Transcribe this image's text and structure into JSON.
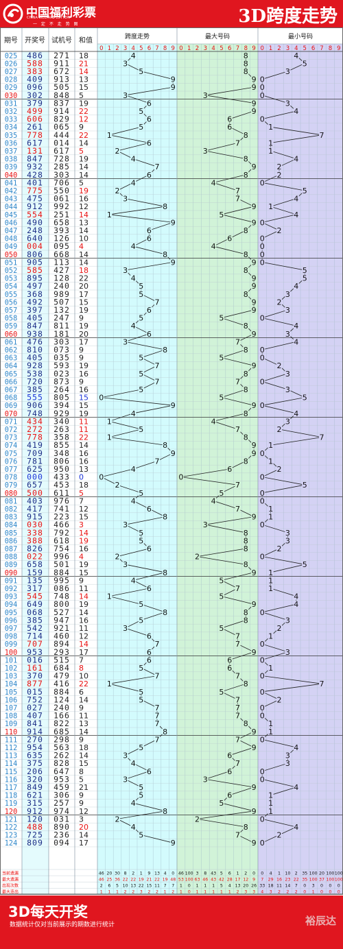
{
  "header": {
    "logo_cn": "中国福利彩票",
    "logo_en": "CHINA WELFARE LOTTERY",
    "slogan": "一 定 不 走 势 图",
    "title": "3D跨度走势"
  },
  "columns": {
    "period": "期号",
    "draw": "开奖号",
    "trial": "试机号",
    "sum": "和值",
    "span": "跨度走势",
    "max": "最大号码",
    "min": "最小号码"
  },
  "digits": [
    "0",
    "1",
    "2",
    "3",
    "4",
    "5",
    "6",
    "7",
    "8",
    "9"
  ],
  "chart_data": {
    "type": "table",
    "rows": [
      [
        "025",
        "486",
        "271",
        18
      ],
      [
        "026",
        "588",
        "911",
        21
      ],
      [
        "027",
        "383",
        "672",
        14
      ],
      [
        "028",
        "409",
        "913",
        13
      ],
      [
        "029",
        "096",
        "505",
        15
      ],
      [
        "030",
        "302",
        "848",
        5
      ],
      [
        "031",
        "379",
        "837",
        19
      ],
      [
        "032",
        "499",
        "914",
        22
      ],
      [
        "033",
        "606",
        "829",
        12
      ],
      [
        "034",
        "261",
        "065",
        9
      ],
      [
        "035",
        "778",
        "444",
        22
      ],
      [
        "036",
        "617",
        "014",
        14
      ],
      [
        "037",
        "131",
        "617",
        5
      ],
      [
        "038",
        "847",
        "728",
        19
      ],
      [
        "039",
        "932",
        "285",
        14
      ],
      [
        "040",
        "428",
        "303",
        14
      ],
      [
        "041",
        "401",
        "706",
        5
      ],
      [
        "042",
        "775",
        "550",
        19
      ],
      [
        "043",
        "475",
        "061",
        16
      ],
      [
        "044",
        "912",
        "992",
        12
      ],
      [
        "045",
        "554",
        "251",
        14
      ],
      [
        "046",
        "490",
        "658",
        13
      ],
      [
        "047",
        "248",
        "393",
        14
      ],
      [
        "048",
        "640",
        "126",
        10
      ],
      [
        "049",
        "004",
        "095",
        4
      ],
      [
        "050",
        "806",
        "668",
        14
      ],
      [
        "051",
        "905",
        "113",
        14
      ],
      [
        "052",
        "585",
        "427",
        18
      ],
      [
        "053",
        "895",
        "128",
        22
      ],
      [
        "054",
        "497",
        "240",
        20
      ],
      [
        "055",
        "368",
        "989",
        17
      ],
      [
        "056",
        "492",
        "507",
        15
      ],
      [
        "057",
        "397",
        "132",
        19
      ],
      [
        "058",
        "405",
        "247",
        9
      ],
      [
        "059",
        "847",
        "811",
        19
      ],
      [
        "060",
        "938",
        "181",
        20
      ],
      [
        "061",
        "476",
        "303",
        17
      ],
      [
        "062",
        "810",
        "073",
        9
      ],
      [
        "063",
        "405",
        "035",
        9
      ],
      [
        "064",
        "928",
        "593",
        19
      ],
      [
        "065",
        "538",
        "023",
        16
      ],
      [
        "066",
        "720",
        "873",
        9
      ],
      [
        "067",
        "385",
        "264",
        16
      ],
      [
        "068",
        "555",
        "805",
        15
      ],
      [
        "069",
        "906",
        "394",
        15
      ],
      [
        "070",
        "748",
        "929",
        19
      ],
      [
        "071",
        "434",
        "340",
        11
      ],
      [
        "072",
        "272",
        "263",
        11
      ],
      [
        "073",
        "778",
        "358",
        22
      ],
      [
        "074",
        "419",
        "855",
        14
      ],
      [
        "075",
        "709",
        "348",
        16
      ],
      [
        "076",
        "781",
        "806",
        16
      ],
      [
        "077",
        "625",
        "950",
        13
      ],
      [
        "078",
        "000",
        "433",
        0
      ],
      [
        "079",
        "657",
        "453",
        18
      ],
      [
        "080",
        "500",
        "611",
        5
      ],
      [
        "081",
        "403",
        "976",
        7
      ],
      [
        "082",
        "417",
        "741",
        12
      ],
      [
        "083",
        "915",
        "223",
        15
      ],
      [
        "084",
        "030",
        "466",
        3
      ],
      [
        "085",
        "338",
        "792",
        14
      ],
      [
        "086",
        "388",
        "618",
        19
      ],
      [
        "087",
        "826",
        "754",
        16
      ],
      [
        "088",
        "022",
        "996",
        4
      ],
      [
        "089",
        "658",
        "501",
        19
      ],
      [
        "090",
        "159",
        "884",
        15
      ],
      [
        "091",
        "135",
        "995",
        9
      ],
      [
        "092",
        "317",
        "086",
        11
      ],
      [
        "093",
        "545",
        "748",
        14
      ],
      [
        "094",
        "649",
        "800",
        19
      ],
      [
        "095",
        "068",
        "527",
        14
      ],
      [
        "096",
        "385",
        "947",
        16
      ],
      [
        "097",
        "542",
        "921",
        11
      ],
      [
        "098",
        "714",
        "460",
        12
      ],
      [
        "099",
        "707",
        "894",
        14
      ],
      [
        "100",
        "953",
        "293",
        17
      ],
      [
        "101",
        "016",
        "515",
        7
      ],
      [
        "102",
        "161",
        "684",
        8
      ],
      [
        "103",
        "370",
        "479",
        10
      ],
      [
        "104",
        "877",
        "416",
        22
      ],
      [
        "105",
        "015",
        "884",
        6
      ],
      [
        "106",
        "752",
        "124",
        14
      ],
      [
        "107",
        "027",
        "240",
        9
      ],
      [
        "108",
        "407",
        "166",
        11
      ],
      [
        "109",
        "841",
        "822",
        13
      ],
      [
        "110",
        "914",
        "685",
        14
      ],
      [
        "111",
        "270",
        "298",
        9
      ],
      [
        "112",
        "954",
        "563",
        18
      ],
      [
        "113",
        "635",
        "262",
        14
      ],
      [
        "114",
        "375",
        "828",
        15
      ],
      [
        "115",
        "206",
        "647",
        8
      ],
      [
        "116",
        "320",
        "953",
        5
      ],
      [
        "117",
        "849",
        "459",
        21
      ],
      [
        "118",
        "621",
        "306",
        9
      ],
      [
        "119",
        "315",
        "257",
        9
      ],
      [
        "120",
        "912",
        "974",
        12
      ],
      [
        "121",
        "120",
        "031",
        3
      ],
      [
        "122",
        "488",
        "890",
        20
      ],
      [
        "123",
        "725",
        "236",
        14
      ],
      [
        "124",
        "809",
        "094",
        17
      ]
    ],
    "stat_labels": [
      "当前遗漏",
      "最大遗漏",
      "出现次数",
      "最大连出"
    ],
    "stats": {
      "span": [
        [
          46,
          20,
          30,
          8,
          2,
          1,
          9,
          13,
          4,
          0
        ],
        [
          46,
          25,
          36,
          22,
          22,
          19,
          21,
          22,
          19,
          48
        ],
        [
          2,
          6,
          5,
          10,
          13,
          22,
          15,
          11,
          7,
          7
        ],
        [
          1,
          1,
          1,
          2,
          2,
          3,
          2,
          2,
          1,
          2
        ]
      ],
      "max": [
        [
          46,
          100,
          3,
          8,
          43,
          5,
          6,
          1,
          2,
          0
        ],
        [
          53,
          100,
          63,
          46,
          43,
          42,
          28,
          17,
          12,
          9
        ],
        [
          1,
          0,
          1,
          1,
          1,
          5,
          4,
          13,
          20,
          26
        ],
        [
          1,
          0,
          1,
          1,
          1,
          1,
          1,
          2,
          3,
          3
        ]
      ],
      "min": [
        [
          0,
          4,
          1,
          10,
          2,
          35,
          100,
          20,
          100,
          100
        ],
        [
          7,
          29,
          16,
          23,
          22,
          35,
          100,
          37,
          100,
          100
        ],
        [
          33,
          18,
          11,
          14,
          7,
          0,
          3,
          0,
          0,
          0
        ],
        [
          4,
          3,
          2,
          2,
          2,
          0,
          1,
          0,
          0,
          0
        ]
      ]
    }
  },
  "footer": {
    "title": "3D每天开奖",
    "note": "数据统计仅对当前展示的期数进行统计",
    "brand": "裕辰达"
  },
  "colors": {
    "header": "#e0161f",
    "span_zone": "#d3fbfd",
    "max_zone": "#d1f3d8",
    "min_zone": "#d4d2f4",
    "text_blue": "#1a2b85",
    "text_red": "#e81010",
    "period_blue": "#2e86c9",
    "period_red": "#e81010"
  }
}
